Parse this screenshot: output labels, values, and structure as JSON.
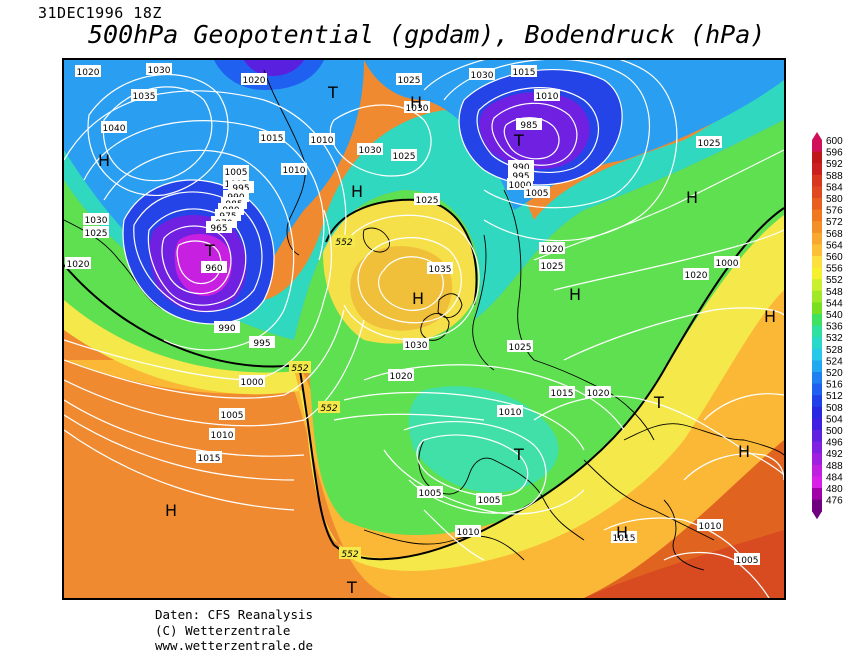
{
  "header": {
    "datetime": "31DEC1996 18Z",
    "title": "500hPa Geopotential (gpdam), Bodendruck (hPa)"
  },
  "footer": {
    "line1": "Daten: CFS Reanalysis",
    "line2": "(C) Wetterzentrale",
    "line3": "www.wetterzentrale.de"
  },
  "legend": {
    "values": [
      "600",
      "596",
      "592",
      "588",
      "584",
      "580",
      "576",
      "572",
      "568",
      "564",
      "560",
      "556",
      "552",
      "548",
      "544",
      "540",
      "536",
      "532",
      "528",
      "524",
      "520",
      "516",
      "512",
      "508",
      "504",
      "500",
      "496",
      "492",
      "488",
      "484",
      "480",
      "476"
    ],
    "colors": [
      "#d0105a",
      "#c01818",
      "#cc2020",
      "#d83820",
      "#e04a20",
      "#e86020",
      "#f07820",
      "#f49028",
      "#f8a830",
      "#fcc038",
      "#fde040",
      "#f6f030",
      "#c8f030",
      "#a0e828",
      "#78e020",
      "#40e060",
      "#30e0a0",
      "#28d8c8",
      "#28c8e8",
      "#20a8f0",
      "#2080f0",
      "#2060f0",
      "#2040e8",
      "#2828e0",
      "#4020e0",
      "#6020e0",
      "#8020e0",
      "#a020e0",
      "#c020e0",
      "#d820e8",
      "#a000a8",
      "#700080"
    ],
    "unit_note": ""
  },
  "map": {
    "pressure_labels": [
      "1020",
      "1030",
      "1020",
      "1010",
      "1025",
      "1015",
      "1010",
      "1005",
      "1035",
      "1040",
      "1030",
      "1025",
      "1020",
      "1005",
      "995",
      "990",
      "985",
      "980",
      "975",
      "970",
      "965",
      "960",
      "1000",
      "995",
      "990",
      "1015",
      "1010",
      "1005",
      "1030",
      "1025",
      "1030",
      "1025",
      "1030",
      "1015",
      "1010",
      "985",
      "990",
      "995",
      "1000",
      "1005",
      "1025",
      "1020",
      "1025",
      "1020",
      "1035",
      "1030",
      "1025",
      "1020",
      "1015",
      "1020",
      "1010",
      "1005",
      "1010",
      "1005",
      "1015",
      "1010",
      "1005",
      "1000",
      "1020",
      "1020",
      "1020",
      "1025"
    ],
    "height_labels": [
      "552",
      "552",
      "552",
      "552"
    ],
    "centers": [
      {
        "type": "H"
      },
      {
        "type": "T"
      },
      {
        "type": "T"
      },
      {
        "type": "H"
      },
      {
        "type": "H"
      },
      {
        "type": "T"
      },
      {
        "type": "H"
      },
      {
        "type": "H"
      },
      {
        "type": "H"
      },
      {
        "type": "H"
      },
      {
        "type": "H"
      },
      {
        "type": "T"
      },
      {
        "type": "T"
      },
      {
        "type": "H"
      },
      {
        "type": "H"
      },
      {
        "type": "T"
      },
      {
        "type": "T"
      },
      {
        "type": "H"
      }
    ]
  }
}
